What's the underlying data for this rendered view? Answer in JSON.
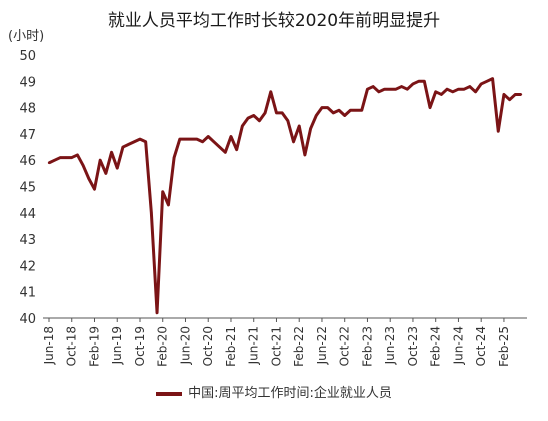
{
  "chart_data": {
    "type": "line",
    "title": "就业人员平均工作时长较2020年前明显提升",
    "unit": "(小时)",
    "ylim": [
      40,
      50
    ],
    "yticks": [
      40,
      41,
      42,
      43,
      44,
      45,
      46,
      47,
      48,
      49,
      50
    ],
    "xticks": [
      "Jun-18",
      "Oct-18",
      "Feb-19",
      "Jun-19",
      "Oct-19",
      "Feb-20",
      "Jun-20",
      "Oct-20",
      "Feb-21",
      "Jun-21",
      "Oct-21",
      "Feb-22",
      "Jun-22",
      "Oct-22",
      "Feb-23",
      "Jun-23",
      "Oct-23",
      "Feb-24",
      "Jun-24",
      "Oct-24",
      "Feb-25"
    ],
    "grid": false,
    "legend_position": "bottom",
    "series": [
      {
        "name": "中国:周平均工作时间:企业就业人员",
        "color": "#7b1416",
        "x": [
          "2018-06",
          "2018-07",
          "2018-08",
          "2018-09",
          "2018-10",
          "2018-11",
          "2018-12",
          "2019-01",
          "2019-02",
          "2019-03",
          "2019-04",
          "2019-05",
          "2019-06",
          "2019-07",
          "2019-08",
          "2019-09",
          "2019-10",
          "2019-11",
          "2019-12",
          "2020-01",
          "2020-02",
          "2020-03",
          "2020-04",
          "2020-05",
          "2020-06",
          "2020-07",
          "2020-08",
          "2020-09",
          "2020-10",
          "2020-11",
          "2020-12",
          "2021-01",
          "2021-02",
          "2021-03",
          "2021-04",
          "2021-05",
          "2021-06",
          "2021-07",
          "2021-08",
          "2021-09",
          "2021-10",
          "2021-11",
          "2021-12",
          "2022-01",
          "2022-02",
          "2022-03",
          "2022-04",
          "2022-05",
          "2022-06",
          "2022-07",
          "2022-08",
          "2022-09",
          "2022-10",
          "2022-11",
          "2022-12",
          "2023-01",
          "2023-02",
          "2023-03",
          "2023-04",
          "2023-05",
          "2023-06",
          "2023-07",
          "2023-08",
          "2023-09",
          "2023-10",
          "2023-11",
          "2023-12",
          "2024-01",
          "2024-02",
          "2024-03",
          "2024-04",
          "2024-05",
          "2024-06",
          "2024-07",
          "2024-08",
          "2024-09",
          "2024-10",
          "2024-11",
          "2024-12",
          "2025-01",
          "2025-02",
          "2025-03",
          "2025-04",
          "2025-05"
        ],
        "values": [
          45.9,
          46.0,
          46.1,
          46.1,
          46.1,
          46.2,
          45.8,
          45.3,
          44.9,
          46.0,
          45.5,
          46.3,
          45.7,
          46.5,
          46.6,
          46.7,
          46.8,
          46.7,
          44.0,
          40.2,
          44.8,
          44.3,
          46.1,
          46.8,
          46.8,
          46.8,
          46.8,
          46.7,
          46.9,
          46.7,
          46.5,
          46.3,
          46.9,
          46.4,
          47.3,
          47.6,
          47.7,
          47.5,
          47.8,
          48.6,
          47.8,
          47.8,
          47.5,
          46.7,
          47.3,
          46.2,
          47.2,
          47.7,
          48.0,
          48.0,
          47.8,
          47.9,
          47.7,
          47.9,
          47.9,
          47.9,
          48.7,
          48.8,
          48.6,
          48.7,
          48.7,
          48.7,
          48.8,
          48.7,
          48.9,
          49.0,
          49.0,
          48.0,
          48.6,
          48.5,
          48.7,
          48.6,
          48.7,
          48.7,
          48.8,
          48.6,
          48.9,
          49.0,
          49.1,
          47.1,
          48.5,
          48.3,
          48.5,
          48.5
        ]
      }
    ]
  }
}
